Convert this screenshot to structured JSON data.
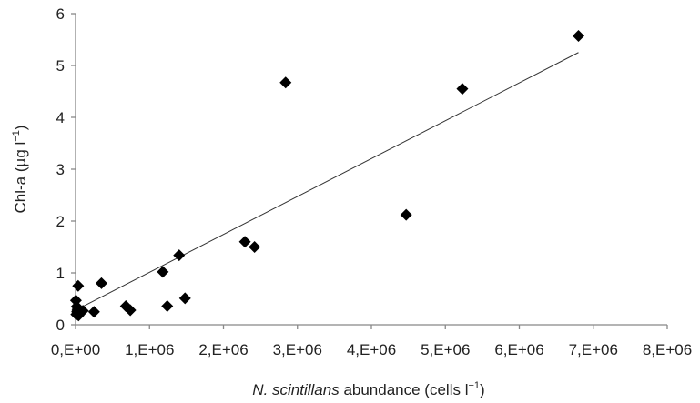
{
  "chart_data": {
    "type": "scatter",
    "title": "",
    "xlabel": {
      "italic": "N. scintillans",
      "rest": " abundance (cells l",
      "sup": "−1",
      "close": ")"
    },
    "ylabel": {
      "main": "Chl-a (µg l",
      "sup": "−1",
      "close": ")"
    },
    "xlim": [
      0,
      8000000
    ],
    "ylim": [
      0,
      6
    ],
    "x_ticks": [
      0,
      1000000,
      2000000,
      3000000,
      4000000,
      5000000,
      6000000,
      7000000,
      8000000
    ],
    "x_tick_labels": [
      "0,E+00",
      "1,E+06",
      "2,E+06",
      "3,E+06",
      "4,E+06",
      "5,E+06",
      "6,E+06",
      "7,E+06",
      "8,E+06"
    ],
    "y_ticks": [
      0,
      1,
      2,
      3,
      4,
      5,
      6
    ],
    "y_tick_labels": [
      "0",
      "1",
      "2",
      "3",
      "4",
      "5",
      "6"
    ],
    "grid": false,
    "legend": "none",
    "marker": "diamond",
    "marker_color": "#000000",
    "trendline_color": "#333333",
    "points": [
      [
        10000,
        0.2
      ],
      [
        20000,
        0.25
      ],
      [
        30000,
        0.3
      ],
      [
        15000,
        0.35
      ],
      [
        25000,
        0.28
      ],
      [
        40000,
        0.18
      ],
      [
        50000,
        0.22
      ],
      [
        5000,
        0.47
      ],
      [
        35000,
        0.75
      ],
      [
        100000,
        0.27
      ],
      [
        250000,
        0.25
      ],
      [
        350000,
        0.8
      ],
      [
        680000,
        0.36
      ],
      [
        740000,
        0.28
      ],
      [
        1180000,
        1.02
      ],
      [
        1240000,
        0.36
      ],
      [
        1400000,
        1.34
      ],
      [
        1480000,
        0.51
      ],
      [
        2290000,
        1.6
      ],
      [
        2420000,
        1.5
      ],
      [
        2840000,
        4.67
      ],
      [
        4470000,
        2.12
      ],
      [
        5230000,
        4.55
      ],
      [
        6800000,
        5.57
      ]
    ],
    "trendline": {
      "x": [
        0,
        6800000
      ],
      "y": [
        0.28,
        5.25
      ]
    }
  }
}
